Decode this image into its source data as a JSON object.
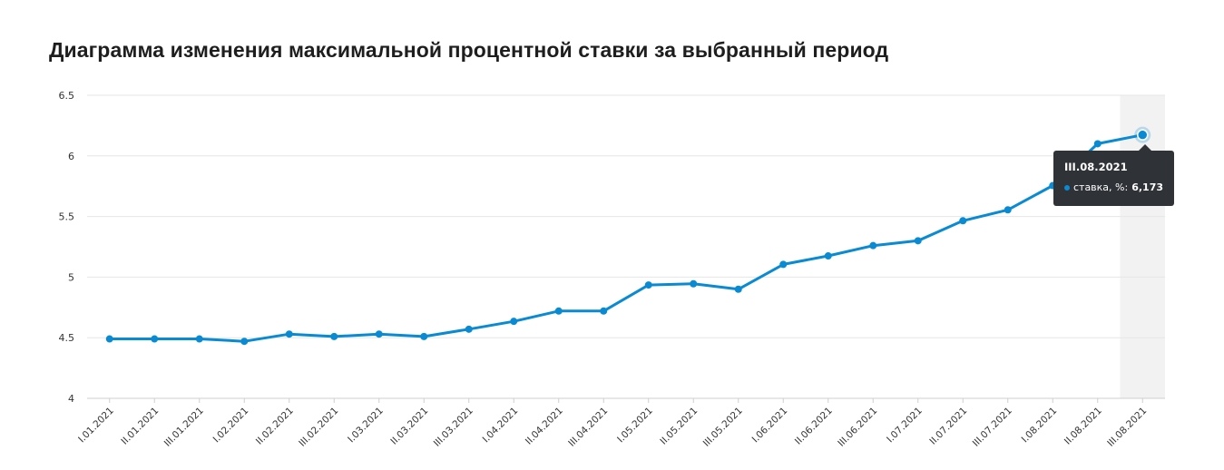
{
  "title": "Диаграмма изменения максимальной процентной ставки за выбранный период",
  "colors": {
    "line": "#0a8ad2",
    "grid": "#e6e6e6",
    "highlight": "#f2f2f2",
    "tooltip_bg": "#2f3237"
  },
  "tooltip": {
    "period": "III.08.2021",
    "series_label": "ставка, %:",
    "value": "6,173"
  },
  "chart_data": {
    "type": "line",
    "title": "Диаграмма изменения максимальной процентной ставки за выбранный период",
    "xlabel": "",
    "ylabel": "",
    "ylim": [
      4,
      6.5
    ],
    "yticks": [
      "4",
      "4.5",
      "5",
      "5.5",
      "6",
      "6.5"
    ],
    "grid": true,
    "highlighted_category": "III.08.2021",
    "categories": [
      "I.01.2021",
      "II.01.2021",
      "III.01.2021",
      "I.02.2021",
      "II.02.2021",
      "III.02.2021",
      "I.03.2021",
      "II.03.2021",
      "III.03.2021",
      "I.04.2021",
      "II.04.2021",
      "III.04.2021",
      "I.05.2021",
      "II.05.2021",
      "III.05.2021",
      "I.06.2021",
      "II.06.2021",
      "III.06.2021",
      "I.07.2021",
      "II.07.2021",
      "III.07.2021",
      "I.08.2021",
      "II.08.2021",
      "III.08.2021"
    ],
    "series": [
      {
        "name": "ставка, %",
        "values": [
          4.49,
          4.49,
          4.49,
          4.47,
          4.53,
          4.51,
          4.53,
          4.51,
          4.57,
          4.635,
          4.72,
          4.72,
          4.935,
          4.945,
          4.9,
          5.105,
          5.175,
          5.26,
          5.3,
          5.465,
          5.555,
          5.755,
          6.1,
          6.173
        ]
      }
    ]
  }
}
